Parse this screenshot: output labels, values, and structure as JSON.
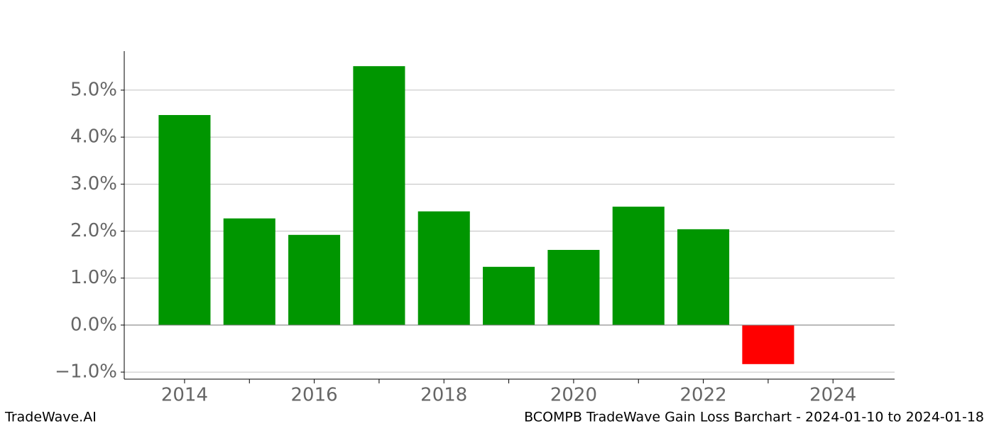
{
  "chart_data": {
    "type": "bar",
    "title": "BCOMPB TradeWave Gain Loss Barchart - 2024-01-10 to 2024-01-18",
    "brand": "TradeWave.AI",
    "x": [
      2014,
      2015,
      2016,
      2017,
      2018,
      2019,
      2020,
      2021,
      2022,
      2023
    ],
    "values": [
      4.47,
      2.27,
      1.92,
      5.51,
      2.42,
      1.24,
      1.6,
      2.52,
      2.04,
      -0.83
    ],
    "color": "#009600",
    "negative_color": "#ff0000",
    "xlim": [
      2013.07,
      2024.95
    ],
    "xticks": [
      2014,
      2016,
      2018,
      2020,
      2022,
      2024
    ],
    "xminor_ticks": [
      2015,
      2017,
      2019,
      2021,
      2023
    ],
    "ylim": [
      -1.15,
      5.83
    ],
    "yticks": [
      {
        "value": -1,
        "label": "−1.0%"
      },
      {
        "value": 0,
        "label": "0.0%"
      },
      {
        "value": 1,
        "label": "1.0%"
      },
      {
        "value": 2,
        "label": "2.0%"
      },
      {
        "value": 3,
        "label": "3.0%"
      },
      {
        "value": 4,
        "label": "4.0%"
      },
      {
        "value": 5,
        "label": "5.0%"
      }
    ],
    "grid": true
  }
}
